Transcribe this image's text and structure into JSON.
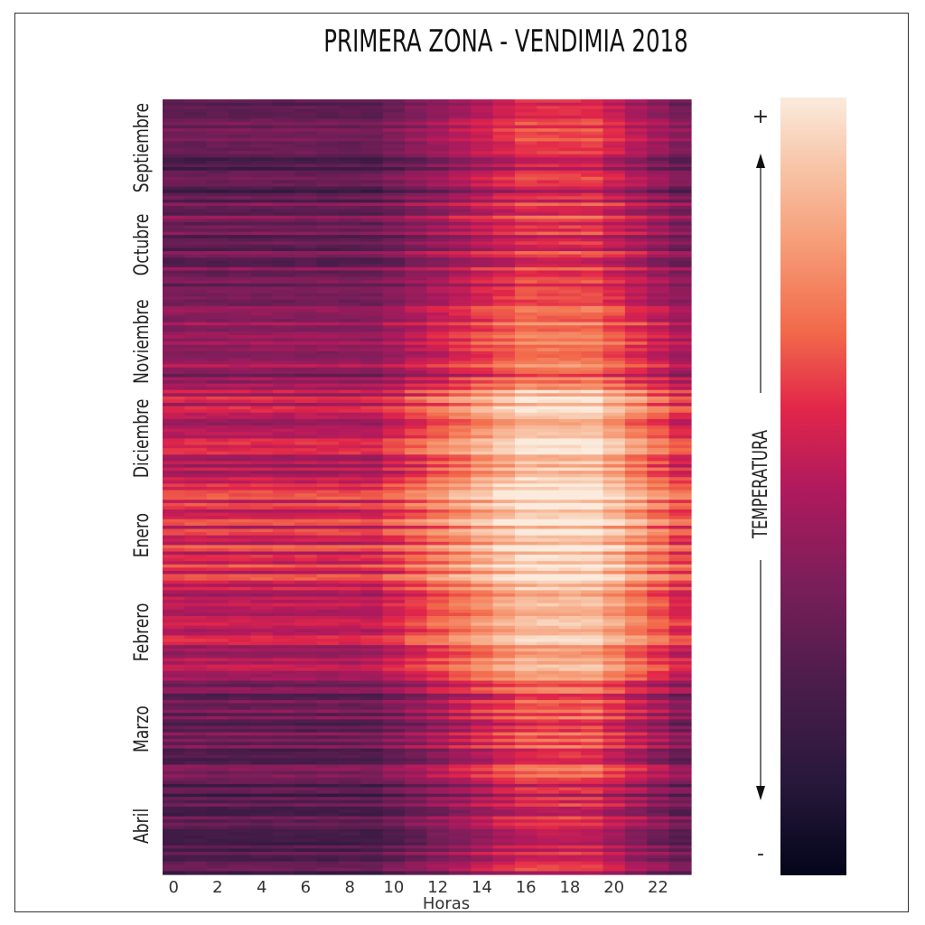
{
  "chart_data": {
    "type": "heatmap",
    "title": "PRIMERA ZONA - VENDIMIA 2018",
    "xlabel": "Horas",
    "ylabel": "",
    "x_tick_labels": [
      "0",
      "2",
      "4",
      "6",
      "8",
      "10",
      "12",
      "14",
      "16",
      "18",
      "20",
      "22"
    ],
    "y_tick_labels": [
      "Septiembre",
      "Octubre",
      "Noviembre",
      "Diciembre",
      "Enero",
      "Febrero",
      "Marzo",
      "Abril"
    ],
    "hours": [
      0,
      1,
      2,
      3,
      4,
      5,
      6,
      7,
      8,
      9,
      10,
      11,
      12,
      13,
      14,
      15,
      16,
      17,
      18,
      19,
      20,
      21,
      22,
      23
    ],
    "colorbar": {
      "label": "TEMPERATURA",
      "max_label": "+",
      "min_label": "-"
    },
    "colormap": "rocket",
    "rows_per_month": 30,
    "month_profiles": [
      {
        "month": "Septiembre",
        "night_level": 0.28,
        "peak_level": 0.58
      },
      {
        "month": "Octubre",
        "night_level": 0.34,
        "peak_level": 0.62
      },
      {
        "month": "Noviembre",
        "night_level": 0.42,
        "peak_level": 0.72
      },
      {
        "month": "Diciembre",
        "night_level": 0.52,
        "peak_level": 0.92
      },
      {
        "month": "Enero",
        "night_level": 0.58,
        "peak_level": 0.95
      },
      {
        "month": "Febrero",
        "night_level": 0.52,
        "peak_level": 0.88
      },
      {
        "month": "Marzo",
        "night_level": 0.32,
        "peak_level": 0.66
      },
      {
        "month": "Abril",
        "night_level": 0.26,
        "peak_level": 0.56
      }
    ]
  }
}
